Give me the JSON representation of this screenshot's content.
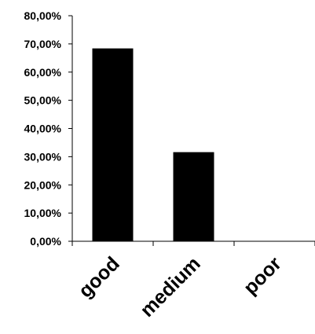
{
  "chart_data": {
    "type": "bar",
    "categories": [
      "good",
      "medium",
      "poor"
    ],
    "values": [
      68.4,
      31.6,
      0
    ],
    "ylim": [
      0,
      80
    ],
    "yticks": [
      "0,00%",
      "10,00%",
      "20,00%",
      "30,00%",
      "40,00%",
      "50,00%",
      "60,00%",
      "70,00%",
      "80,00%"
    ],
    "grid": false,
    "legend": "none",
    "bar_color": "#000000"
  }
}
